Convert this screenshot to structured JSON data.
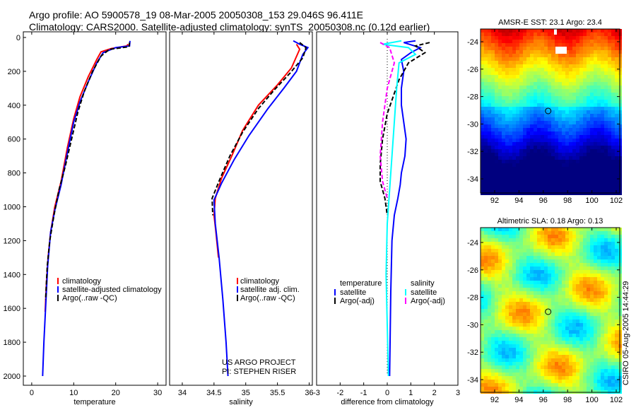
{
  "title_line1": "Argo profile: AO 5900578_19 08-Mar-2005 20050308_153 29.046S 96.411E",
  "title_line2": "Climatology: CARS2000. Satellite-adjusted climatology: synTS_20050308.nc (0.12d earlier)",
  "side_label": "CSIRO 05-Aug-2005 14:44:29",
  "colors": {
    "climatology": "#ff0000",
    "satellite": "#0000ff",
    "argo": "#000000",
    "sal_satellite": "#00ffff",
    "sal_argo": "#ff00ff"
  },
  "chart_data": [
    {
      "type": "line",
      "xlabel": "temperature",
      "xlim": [
        -2,
        32
      ],
      "ylim": [
        2050,
        0
      ],
      "xticks": [
        0,
        10,
        20,
        30
      ],
      "yticks": [
        0,
        200,
        400,
        600,
        800,
        1000,
        1200,
        1400,
        1600,
        1800,
        2000
      ],
      "legend": [
        "climatology",
        "satellite-adjusted climatology",
        "Argo(..raw -QC)"
      ],
      "series": [
        {
          "name": "climatology",
          "color": "#ff0000",
          "dash": false,
          "points": [
            [
              23,
              40
            ],
            [
              22.6,
              50
            ],
            [
              19,
              65
            ],
            [
              16.5,
              85
            ],
            [
              15.5,
              130
            ],
            [
              13.5,
              230
            ],
            [
              11.5,
              350
            ],
            [
              10,
              480
            ],
            [
              8.5,
              650
            ],
            [
              7,
              850
            ],
            [
              5.5,
              1000
            ],
            [
              4.5,
              1150
            ],
            [
              3.9,
              1300
            ],
            [
              3.5,
              1450
            ],
            [
              3.2,
              1620
            ]
          ]
        },
        {
          "name": "satellite-adjusted climatology",
          "color": "#0000ff",
          "dash": false,
          "points": [
            [
              23.4,
              20
            ],
            [
              23.3,
              50
            ],
            [
              20,
              60
            ],
            [
              17,
              90
            ],
            [
              15.5,
              150
            ],
            [
              13.5,
              260
            ],
            [
              11.5,
              380
            ],
            [
              10,
              500
            ],
            [
              8.5,
              680
            ],
            [
              7,
              870
            ],
            [
              5.5,
              1020
            ],
            [
              4.5,
              1150
            ],
            [
              3.8,
              1350
            ],
            [
              3.3,
              1600
            ],
            [
              2.9,
              1800
            ],
            [
              2.6,
              2000
            ]
          ]
        },
        {
          "name": "Argo(..raw -QC)",
          "color": "#000000",
          "dash": true,
          "points": [
            [
              23.3,
              30
            ],
            [
              23.2,
              55
            ],
            [
              18.5,
              70
            ],
            [
              16.5,
              110
            ],
            [
              14.5,
              200
            ],
            [
              12.5,
              320
            ],
            [
              11,
              440
            ],
            [
              9.5,
              600
            ],
            [
              8,
              760
            ],
            [
              6.5,
              900
            ],
            [
              5.3,
              1050
            ],
            [
              4.3,
              1200
            ],
            [
              3.7,
              1350
            ],
            [
              3.3,
              1550
            ]
          ]
        }
      ]
    },
    {
      "type": "line",
      "xlabel": "salinity",
      "xlim": [
        33.8,
        36.05
      ],
      "ylim": [
        2050,
        0
      ],
      "xticks": [
        34,
        34.5,
        35,
        35.5,
        36
      ],
      "yticks": [],
      "legend": [
        "climatology",
        "satellite adj. clim.",
        "Argo(..raw -QC)"
      ],
      "annotation": [
        "US ARGO PROJECT",
        "PI: STEPHEN RISER"
      ],
      "series": [
        {
          "name": "climatology",
          "color": "#ff0000",
          "dash": false,
          "points": [
            [
              35.8,
              40
            ],
            [
              35.85,
              70
            ],
            [
              35.72,
              180
            ],
            [
              35.5,
              280
            ],
            [
              35.2,
              400
            ],
            [
              34.95,
              550
            ],
            [
              34.78,
              700
            ],
            [
              34.62,
              830
            ],
            [
              34.52,
              950
            ],
            [
              34.5,
              1050
            ],
            [
              34.53,
              1150
            ],
            [
              34.57,
              1300
            ]
          ]
        },
        {
          "name": "satellite adj. clim.",
          "color": "#0000ff",
          "dash": false,
          "points": [
            [
              35.75,
              20
            ],
            [
              35.85,
              40
            ],
            [
              35.98,
              60
            ],
            [
              35.9,
              100
            ],
            [
              35.8,
              200
            ],
            [
              35.6,
              300
            ],
            [
              35.35,
              420
            ],
            [
              35.05,
              580
            ],
            [
              34.82,
              720
            ],
            [
              34.62,
              860
            ],
            [
              34.5,
              960
            ],
            [
              34.52,
              1100
            ],
            [
              34.58,
              1300
            ],
            [
              34.64,
              1550
            ],
            [
              34.69,
              1800
            ],
            [
              34.72,
              2000
            ]
          ]
        },
        {
          "name": "Argo(..raw -QC)",
          "color": "#000000",
          "dash": true,
          "points": [
            [
              35.85,
              30
            ],
            [
              35.95,
              60
            ],
            [
              35.9,
              120
            ],
            [
              35.7,
              210
            ],
            [
              35.45,
              310
            ],
            [
              35.2,
              420
            ],
            [
              34.95,
              560
            ],
            [
              34.75,
              700
            ],
            [
              34.6,
              830
            ],
            [
              34.47,
              950
            ],
            [
              34.48,
              1050
            ]
          ]
        }
      ]
    },
    {
      "type": "line",
      "xlabel": "difference from climatology",
      "xlim": [
        -3,
        3
      ],
      "ylim": [
        2050,
        0
      ],
      "xticks": [
        -3,
        -2,
        -1,
        0,
        1,
        2,
        3
      ],
      "yticks": [],
      "legend_temperature": {
        "title": "temperature",
        "items": [
          "satellite",
          "Argo(-adj)"
        ]
      },
      "legend_salinity": {
        "title": "salinity",
        "items": [
          "satellite",
          "Argo(-adj)"
        ]
      },
      "series": [
        {
          "name": "temperature satellite",
          "color": "#0000ff",
          "dash": false,
          "points": [
            [
              1.2,
              20
            ],
            [
              0.7,
              30
            ],
            [
              1.4,
              60
            ],
            [
              1.0,
              90
            ],
            [
              0.6,
              130
            ],
            [
              0.7,
              200
            ],
            [
              0.6,
              300
            ],
            [
              0.6,
              400
            ],
            [
              0.7,
              500
            ],
            [
              0.8,
              600
            ],
            [
              0.75,
              700
            ],
            [
              0.6,
              800
            ],
            [
              0.55,
              870
            ],
            [
              0.45,
              950
            ],
            [
              0.3,
              1050
            ],
            [
              0.2,
              1200
            ],
            [
              0.15,
              1500
            ],
            [
              0.12,
              1800
            ],
            [
              0.1,
              2000
            ]
          ]
        },
        {
          "name": "temperature Argo(-adj)",
          "color": "#000000",
          "dash": true,
          "points": [
            [
              1.8,
              30
            ],
            [
              1.2,
              50
            ],
            [
              1.6,
              90
            ],
            [
              0.9,
              150
            ],
            [
              0.5,
              250
            ],
            [
              0.0,
              450
            ],
            [
              -0.2,
              600
            ],
            [
              -0.3,
              750
            ],
            [
              -0.3,
              850
            ],
            [
              -0.1,
              950
            ],
            [
              0.0,
              1050
            ]
          ]
        },
        {
          "name": "salinity satellite",
          "color": "#00ffff",
          "dash": false,
          "points": [
            [
              0.6,
              20
            ],
            [
              -0.2,
              40
            ],
            [
              0.9,
              60
            ],
            [
              1.2,
              100
            ],
            [
              0.5,
              150
            ],
            [
              0.4,
              300
            ],
            [
              0.3,
              500
            ],
            [
              0.2,
              700
            ],
            [
              0.1,
              900
            ],
            [
              0.0,
              1100
            ],
            [
              -0.05,
              1400
            ],
            [
              0.0,
              1700
            ],
            [
              0.05,
              2000
            ]
          ]
        },
        {
          "name": "salinity Argo(-adj)",
          "color": "#ff00ff",
          "dash": true,
          "points": [
            [
              -0.3,
              30
            ],
            [
              0.1,
              60
            ],
            [
              0.3,
              150
            ],
            [
              0.0,
              300
            ],
            [
              -0.2,
              500
            ],
            [
              -0.3,
              700
            ],
            [
              -0.2,
              850
            ],
            [
              0.0,
              950
            ]
          ]
        }
      ]
    },
    {
      "type": "heatmap",
      "title": "AMSR-E SST: 23.1 Argo: 23.4",
      "xticks": [
        92,
        94,
        96,
        98,
        100,
        102
      ],
      "yticks": [
        -24,
        -26,
        -28,
        -30,
        -32,
        -34
      ],
      "marker": [
        96.4,
        -29.05
      ]
    },
    {
      "type": "heatmap",
      "title": "Altimetric SLA: 0.18 Argo: 0.13",
      "xticks": [
        92,
        94,
        96,
        98,
        100,
        102
      ],
      "yticks": [
        -24,
        -26,
        -28,
        -30,
        -32,
        -34
      ],
      "marker": [
        96.4,
        -29.05
      ]
    }
  ]
}
